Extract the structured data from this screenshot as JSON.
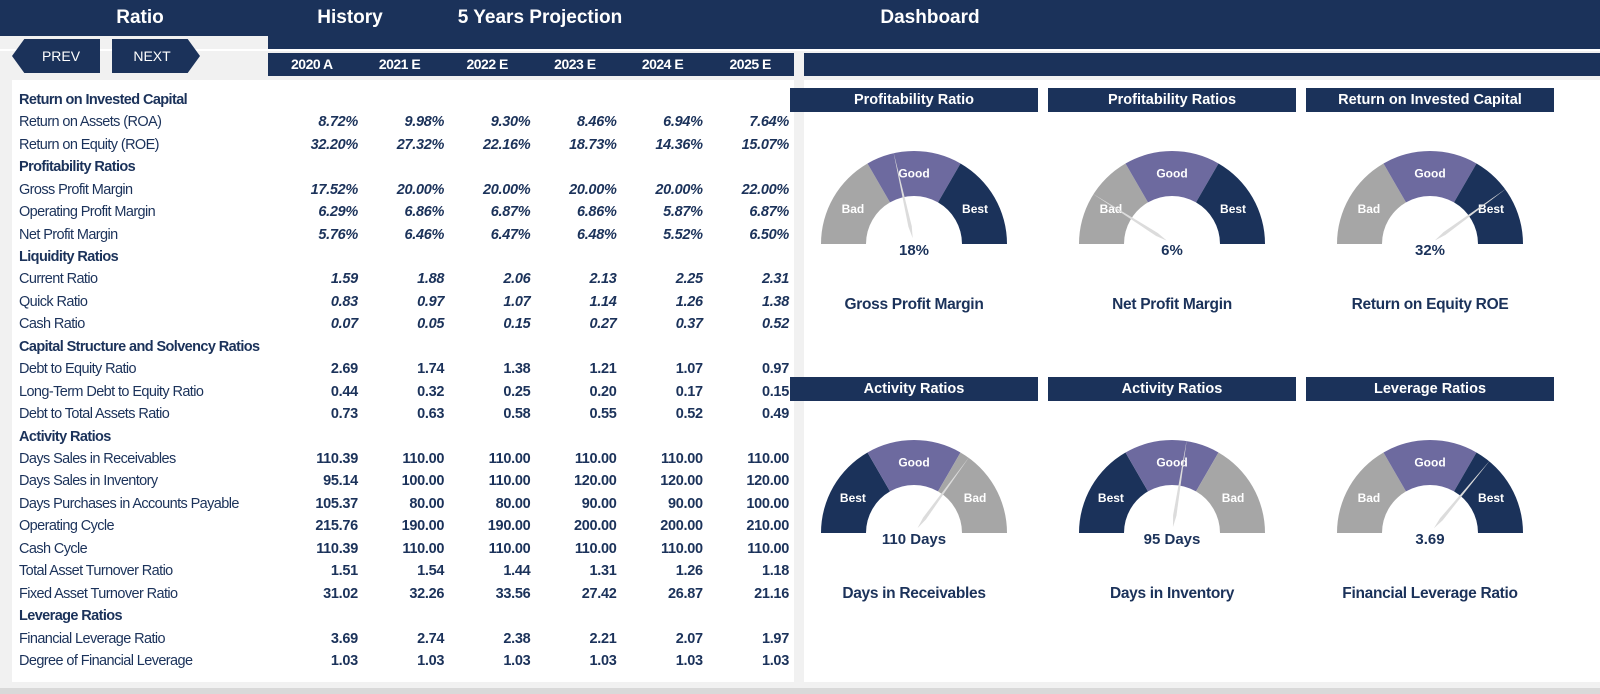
{
  "header": {
    "ratio_label": "Ratio",
    "history_label": "History",
    "projection_label": "5 Years Projection",
    "dashboard_label": "Dashboard",
    "prev_label": "PREV",
    "next_label": "NEXT",
    "years": [
      "2020 A",
      "2021 E",
      "2022 E",
      "2023 E",
      "2024 E",
      "2025 E"
    ]
  },
  "table": {
    "rows": [
      {
        "label": "Return on Invested Capital",
        "section": true,
        "values": []
      },
      {
        "label": "Return on Assets (ROA)",
        "italic": true,
        "values": [
          "8.72%",
          "9.98%",
          "9.30%",
          "8.46%",
          "6.94%",
          "7.64%"
        ]
      },
      {
        "label": "Return on Equity (ROE)",
        "italic": true,
        "values": [
          "32.20%",
          "27.32%",
          "22.16%",
          "18.73%",
          "14.36%",
          "15.07%"
        ]
      },
      {
        "label": "Profitability Ratios",
        "section": true,
        "values": []
      },
      {
        "label": "Gross Profit Margin",
        "italic": true,
        "values": [
          "17.52%",
          "20.00%",
          "20.00%",
          "20.00%",
          "20.00%",
          "22.00%"
        ]
      },
      {
        "label": "Operating Profit Margin",
        "italic": true,
        "values": [
          "6.29%",
          "6.86%",
          "6.87%",
          "6.86%",
          "5.87%",
          "6.87%"
        ]
      },
      {
        "label": "Net Profit Margin",
        "italic": true,
        "values": [
          "5.76%",
          "6.46%",
          "6.47%",
          "6.48%",
          "5.52%",
          "6.50%"
        ]
      },
      {
        "label": "Liquidity Ratios",
        "section": true,
        "values": []
      },
      {
        "label": "Current Ratio",
        "italic": true,
        "values": [
          "1.59",
          "1.88",
          "2.06",
          "2.13",
          "2.25",
          "2.31"
        ]
      },
      {
        "label": "Quick Ratio",
        "italic": true,
        "values": [
          "0.83",
          "0.97",
          "1.07",
          "1.14",
          "1.26",
          "1.38"
        ]
      },
      {
        "label": "Cash Ratio",
        "italic": true,
        "values": [
          "0.07",
          "0.05",
          "0.15",
          "0.27",
          "0.37",
          "0.52"
        ]
      },
      {
        "label": "Capital Structure and Solvency Ratios",
        "section": true,
        "values": []
      },
      {
        "label": "Debt to Equity Ratio",
        "values": [
          "2.69",
          "1.74",
          "1.38",
          "1.21",
          "1.07",
          "0.97"
        ]
      },
      {
        "label": "Long-Term Debt to Equity Ratio",
        "values": [
          "0.44",
          "0.32",
          "0.25",
          "0.20",
          "0.17",
          "0.15"
        ]
      },
      {
        "label": "Debt to Total Assets Ratio",
        "values": [
          "0.73",
          "0.63",
          "0.58",
          "0.55",
          "0.52",
          "0.49"
        ]
      },
      {
        "label": "Activity Ratios",
        "section": true,
        "values": []
      },
      {
        "label": "Days Sales in Receivables",
        "values": [
          "110.39",
          "110.00",
          "110.00",
          "110.00",
          "110.00",
          "110.00"
        ]
      },
      {
        "label": "Days Sales in Inventory",
        "values": [
          "95.14",
          "100.00",
          "110.00",
          "120.00",
          "120.00",
          "120.00"
        ]
      },
      {
        "label": "Days Purchases in Accounts Payable",
        "values": [
          "105.37",
          "80.00",
          "80.00",
          "90.00",
          "90.00",
          "100.00"
        ]
      },
      {
        "label": "Operating Cycle",
        "values": [
          "215.76",
          "190.00",
          "190.00",
          "200.00",
          "200.00",
          "210.00"
        ]
      },
      {
        "label": "Cash Cycle",
        "values": [
          "110.39",
          "110.00",
          "110.00",
          "110.00",
          "110.00",
          "110.00"
        ]
      },
      {
        "label": "Total Asset Turnover Ratio",
        "values": [
          "1.51",
          "1.54",
          "1.44",
          "1.31",
          "1.26",
          "1.18"
        ]
      },
      {
        "label": "Fixed Asset Turnover Ratio",
        "values": [
          "31.02",
          "32.26",
          "33.56",
          "27.42",
          "26.87",
          "21.16"
        ]
      },
      {
        "label": "Leverage Ratios",
        "section": true,
        "values": []
      },
      {
        "label": "Financial Leverage Ratio",
        "values": [
          "3.69",
          "2.74",
          "2.38",
          "2.21",
          "2.07",
          "1.97"
        ]
      },
      {
        "label": "Degree of Financial Leverage",
        "values": [
          "1.03",
          "1.03",
          "1.03",
          "1.03",
          "1.03",
          "1.03"
        ]
      }
    ]
  },
  "colors": {
    "navy": "#1b325a",
    "good": "#6d6a9f",
    "bad": "#a6a6a6",
    "needle": "#dcdcdc"
  },
  "gauges": [
    {
      "title": "Profitability Ratio",
      "value": "18%",
      "caption": "Gross Profit Margin",
      "zones": [
        "Bad",
        "Good",
        "Best"
      ],
      "needle_fraction": 0.43
    },
    {
      "title": "Profitability Ratios",
      "value": "6%",
      "caption": "Net Profit Margin",
      "zones": [
        "Bad",
        "Good",
        "Best"
      ],
      "needle_fraction": 0.18
    },
    {
      "title": "Return on Invested Capital",
      "value": "32%",
      "caption": "Return on Equity ROE",
      "zones": [
        "Bad",
        "Good",
        "Best"
      ],
      "needle_fraction": 0.8
    },
    {
      "title": "Activity Ratios",
      "value": "110 Days",
      "caption": "Days in Receivables",
      "zones": [
        "Best",
        "Good",
        "Bad"
      ],
      "needle_fraction": 0.7
    },
    {
      "title": "Activity Ratios",
      "value": "95 Days",
      "caption": "Days in Inventory",
      "zones": [
        "Best",
        "Good",
        "Bad"
      ],
      "needle_fraction": 0.55
    },
    {
      "title": "Leverage Ratios",
      "value": "3.69",
      "caption": "Financial Leverage Ratio",
      "zones": [
        "Bad",
        "Good",
        "Best"
      ],
      "needle_fraction": 0.72
    }
  ]
}
